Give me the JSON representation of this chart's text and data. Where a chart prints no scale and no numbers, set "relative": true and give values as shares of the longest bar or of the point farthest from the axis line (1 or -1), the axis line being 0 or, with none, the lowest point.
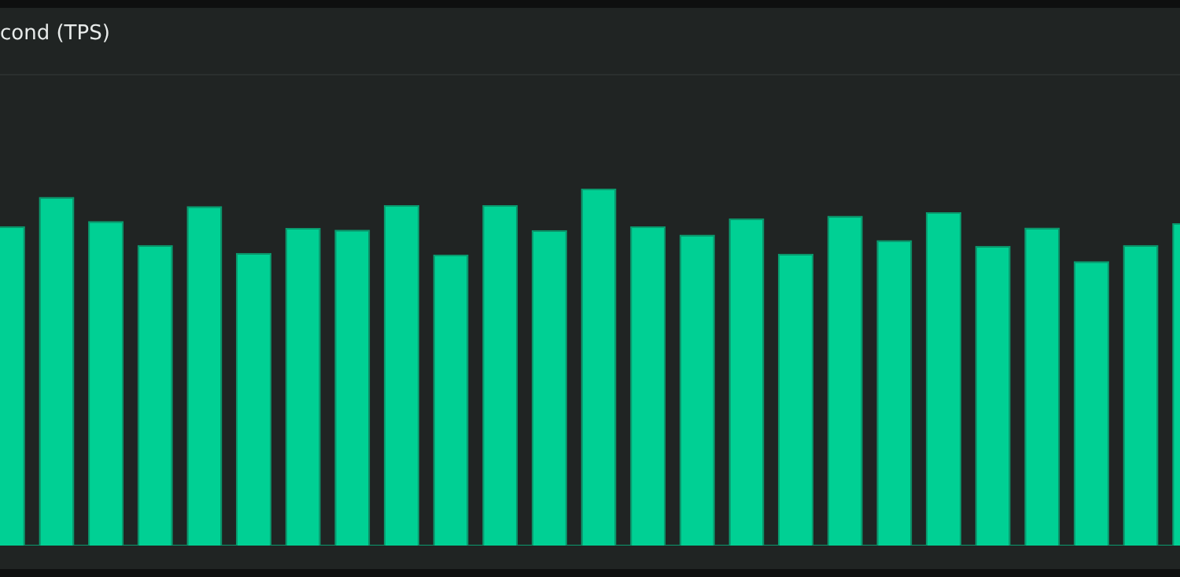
{
  "chart_data": {
    "type": "bar",
    "title": "cond (TPS)",
    "relative": true,
    "tick_labels": false,
    "categories": [
      null,
      null,
      null,
      null,
      null,
      null,
      null,
      null,
      null,
      null,
      null,
      null,
      null,
      null,
      null,
      null,
      null,
      null,
      null,
      null,
      null,
      null,
      null,
      null,
      null
    ],
    "values": [
      0.895,
      0.977,
      0.909,
      0.842,
      0.951,
      0.82,
      0.89,
      0.885,
      0.954,
      0.815,
      0.954,
      0.884,
      1,
      0.894,
      0.871,
      0.917,
      0.818,
      0.924,
      0.856,
      0.934,
      0.84,
      0.891,
      0.797,
      0.842,
      0.903
    ],
    "color": "#00d094"
  }
}
